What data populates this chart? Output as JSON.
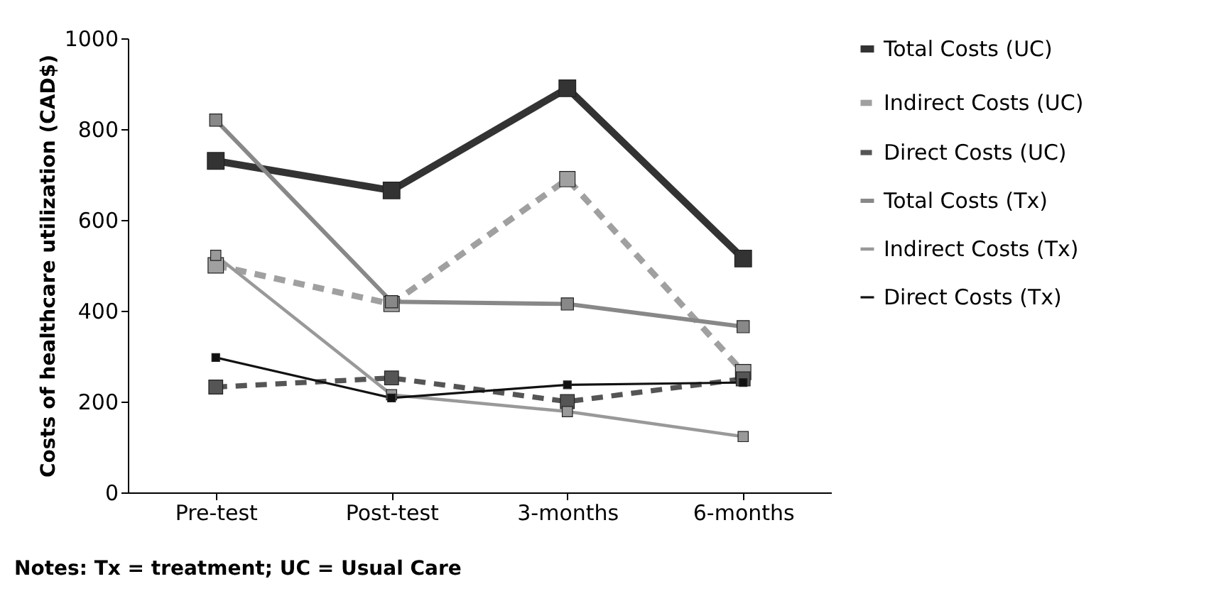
{
  "chart_data": {
    "type": "line",
    "ylabel": "Costs of healthcare utilization (CAD$)",
    "categories": [
      "Pre-test",
      "Post-test",
      "3-months",
      "6-months"
    ],
    "series": [
      {
        "name": "Total Costs (UC)",
        "color": "#333333",
        "line_style": "solid",
        "values": [
          730,
          665,
          890,
          515
        ]
      },
      {
        "name": "Indirect Costs (UC)",
        "color": "#a0a0a0",
        "line_style": "dashed",
        "values": [
          500,
          415,
          690,
          265
        ]
      },
      {
        "name": "Direct Costs (UC)",
        "color": "#555555",
        "line_style": "dashed",
        "values": [
          232,
          252,
          200,
          250
        ]
      },
      {
        "name": "Total Costs (Tx)",
        "color": "#888888",
        "line_style": "solid",
        "values": [
          820,
          420,
          415,
          365
        ]
      },
      {
        "name": "Indirect Costs (Tx)",
        "color": "#999999",
        "line_style": "solid",
        "values": [
          522,
          215,
          178,
          123
        ]
      },
      {
        "name": "Direct Costs (Tx)",
        "color": "#111111",
        "line_style": "solid",
        "values": [
          297,
          208,
          237,
          242
        ]
      }
    ],
    "ylim": [
      0,
      1000
    ],
    "yticks": [
      0,
      200,
      400,
      600,
      800,
      1000
    ],
    "grid": false,
    "legend": "right",
    "marker": "square",
    "annotations": [
      "Notes: Tx = treatment; UC = Usual Care"
    ]
  }
}
